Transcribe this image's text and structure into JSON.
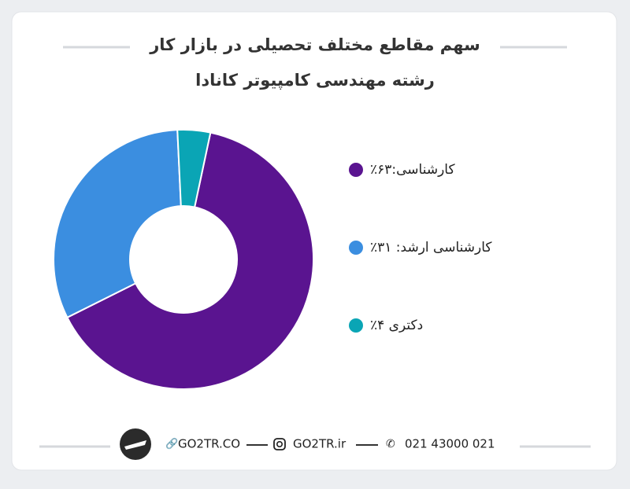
{
  "chart_data": {
    "type": "pie",
    "title_lines": [
      "سهم مقاطع مختلف تحصیلی در بازار کار",
      "رشته مهندسی کامپیوتر کانادا"
    ],
    "categories": [
      "کارشناسی:۶۳٪",
      "کارشناسی ارشد:  ۳۱٪",
      "دکتری ۴٪"
    ],
    "values": [
      63,
      31,
      4
    ],
    "colors": [
      "#5a1490",
      "#3b8ee0",
      "#0aa5b5"
    ],
    "donut": true
  },
  "footer": {
    "site": "GO2TR.CO",
    "instagram": "GO2TR.ir",
    "phone": "021 43000 021"
  }
}
